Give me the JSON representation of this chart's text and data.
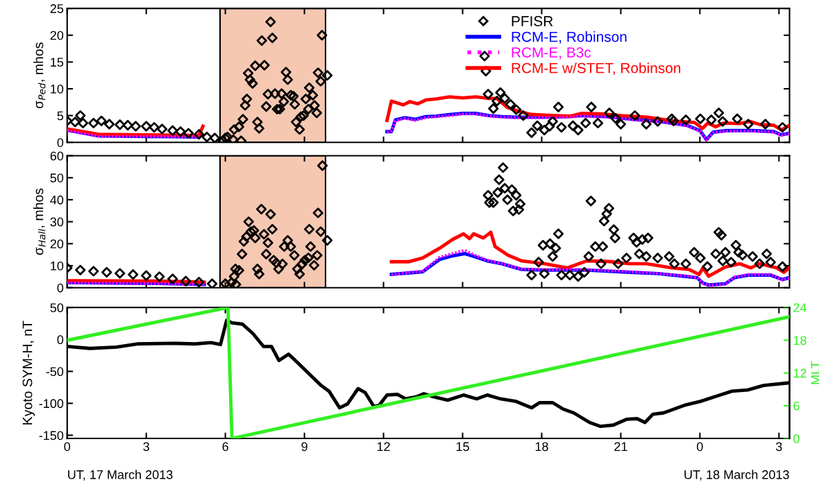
{
  "chart_data": [
    {
      "type": "scatter",
      "ylabel": "σ$_{Ped}$, mhos",
      "xlim": [
        "2013-03-17T00:00",
        "2013-03-18T03:24"
      ],
      "ylim": [
        0,
        25
      ],
      "yticks": [
        0,
        5,
        10,
        15,
        20,
        25
      ],
      "xticks": [
        {
          "value": "2013-03-17T00:00",
          "label": null
        },
        {
          "value": "2013-03-17T03:00",
          "label": null
        },
        {
          "value": "2013-03-17T06:00",
          "label": null
        },
        {
          "value": "2013-03-17T09:00",
          "label": null
        },
        {
          "value": "2013-03-17T12:00",
          "label": null
        },
        {
          "value": "2013-03-17T15:00",
          "label": null
        },
        {
          "value": "2013-03-17T18:00",
          "label": null
        },
        {
          "value": "2013-03-17T21:00",
          "label": null
        },
        {
          "value": "2013-03-18T00:00",
          "label": null
        },
        {
          "value": "2013-03-18T03:00",
          "label": null
        }
      ],
      "tick_labels": "y",
      "legend": "top right",
      "grid": false,
      "bands": [
        {
          "axis": "x",
          "from": "2013-03-17T05:48",
          "to": "2013-03-17T09:48",
          "color": "#f6c8b2"
        }
      ],
      "series": [
        {
          "name": "PFISR",
          "marker": "diamond",
          "color": "#000000",
          "x": [
            "2013-03-17T00:00",
            "2013-03-17T00:18",
            "2013-03-17T00:30",
            "2013-03-17T00:36",
            "2013-03-17T01:00",
            "2013-03-17T01:18",
            "2013-03-17T01:36",
            "2013-03-17T02:00",
            "2013-03-17T02:18",
            "2013-03-17T02:36",
            "2013-03-17T03:00",
            "2013-03-17T03:18",
            "2013-03-17T03:36",
            "2013-03-17T04:00",
            "2013-03-17T04:18",
            "2013-03-17T04:36",
            "2013-03-17T05:00",
            "2013-03-17T05:18",
            "2013-03-17T05:36",
            "2013-03-17T05:54",
            "2013-03-17T06:00",
            "2013-03-17T06:18",
            "2013-03-17T06:36",
            "2013-03-17T06:05",
            "2013-03-17T06:20",
            "2013-03-17T06:31",
            "2013-03-17T06:40",
            "2013-03-17T06:45",
            "2013-03-17T06:49",
            "2013-03-17T06:52",
            "2013-03-17T06:56",
            "2013-03-17T07:02",
            "2013-03-17T07:08",
            "2013-03-17T07:13",
            "2013-03-17T07:17",
            "2013-03-17T07:23",
            "2013-03-17T07:29",
            "2013-03-17T07:33",
            "2013-03-17T07:37",
            "2013-03-17T07:43",
            "2013-03-17T07:47",
            "2013-03-17T07:53",
            "2013-03-17T07:58",
            "2013-03-17T08:04",
            "2013-03-17T08:08",
            "2013-03-17T08:13",
            "2013-03-17T08:18",
            "2013-03-17T08:22",
            "2013-03-17T08:29",
            "2013-03-17T08:35",
            "2013-03-17T08:38",
            "2013-03-17T08:41",
            "2013-03-17T08:49",
            "2013-03-17T08:52",
            "2013-03-17T08:58",
            "2013-03-17T09:03",
            "2013-03-17T09:09",
            "2013-03-17T09:11",
            "2013-03-17T09:19",
            "2013-03-17T09:23",
            "2013-03-17T09:28",
            "2013-03-17T09:31",
            "2013-03-17T09:37",
            "2013-03-17T09:40",
            "2013-03-17T09:52",
            "2013-03-17T15:50",
            "2013-03-17T15:53",
            "2013-03-17T15:58",
            "2013-03-17T16:10",
            "2013-03-17T16:18",
            "2013-03-17T16:26",
            "2013-03-17T16:36",
            "2013-03-17T16:49",
            "2013-03-17T17:02",
            "2013-03-17T17:18",
            "2013-03-17T17:37",
            "2013-03-17T17:50",
            "2013-03-17T18:06",
            "2013-03-17T18:18",
            "2013-03-17T18:25",
            "2013-03-17T18:38",
            "2013-03-17T18:45",
            "2013-03-17T19:11",
            "2013-03-17T19:23",
            "2013-03-17T19:40",
            "2013-03-17T19:53",
            "2013-03-17T20:08",
            "2013-03-17T20:34",
            "2013-03-17T20:48",
            "2013-03-17T21:00",
            "2013-03-17T21:32",
            "2013-03-17T21:58",
            "2013-03-17T22:24",
            "2013-03-17T22:56",
            "2013-03-17T23:00",
            "2013-03-17T23:28",
            "2013-03-18T00:01",
            "2013-03-18T00:26",
            "2013-03-18T00:43",
            "2013-03-18T00:52",
            "2013-03-18T01:25",
            "2013-03-18T01:50",
            "2013-03-18T02:29",
            "2013-03-18T03:08"
          ],
          "values": [
            4,
            3.8,
            5,
            3.6,
            3.6,
            4,
            3.4,
            3.3,
            3.2,
            3,
            3,
            2.8,
            2.5,
            2.2,
            2,
            1.7,
            1.5,
            1,
            0.8,
            0.3,
            0.8,
            0.5,
            0.3,
            1.0,
            2.4,
            2.9,
            4.3,
            6.9,
            8.1,
            12.9,
            11.7,
            11.0,
            14.3,
            3.8,
            2.6,
            19.0,
            14.4,
            6.7,
            9.0,
            22.5,
            19.5,
            9.1,
            6.2,
            6.2,
            9.1,
            7.6,
            13.1,
            11.7,
            8.8,
            8.6,
            7.1,
            3.8,
            2.4,
            4.8,
            5.0,
            8.1,
            6.2,
            10.2,
            8.8,
            6.9,
            5.5,
            13.0,
            11.4,
            20.0,
            12.5,
            16.1,
            13.3,
            9.0,
            6.3,
            7.7,
            9.3,
            8.2,
            7.1,
            6.1,
            5.0,
            1.8,
            3.1,
            2.3,
            3.0,
            3.9,
            6.6,
            2.8,
            3.1,
            2.3,
            3.6,
            6.6,
            3.6,
            5.5,
            4.5,
            3.4,
            5.0,
            3.4,
            3.9,
            4.4,
            4.0,
            4.2,
            4.4,
            4.2,
            5.5,
            3.9,
            4.4,
            3.4,
            3.4,
            2.8
          ]
        },
        {
          "name": "RCM-E, Robinson",
          "type": "line",
          "color": "#0000ff",
          "line_style": "solid",
          "x": [
            "2013-03-17T00:00",
            "2013-03-17T01:12",
            "2013-03-17T03:00",
            "2013-03-17T04:58",
            "2013-03-17T05:07",
            "2013-03-17T08:00",
            "2013-03-17T12:08",
            "2013-03-17T12:18",
            "2013-03-17T12:27",
            "2013-03-17T12:48",
            "2013-03-17T13:12",
            "2013-03-17T13:36",
            "2013-03-17T14:00",
            "2013-03-17T14:30",
            "2013-03-17T15:00",
            "2013-03-17T15:30",
            "2013-03-17T16:00",
            "2013-03-17T16:30",
            "2013-03-17T17:00",
            "2013-03-17T18:00",
            "2013-03-17T19:00",
            "2013-03-17T19:30",
            "2013-03-17T20:30",
            "2013-03-17T21:30",
            "2013-03-17T22:30",
            "2013-03-17T23:30",
            "2013-03-18T00:00",
            "2013-03-18T00:15",
            "2013-03-18T00:30",
            "2013-03-18T01:00",
            "2013-03-18T02:00",
            "2013-03-18T02:48",
            "2013-03-18T03:06",
            "2013-03-18T03:24"
          ],
          "values": [
            2.3,
            1.2,
            1.1,
            1.0,
            1.4,
            null,
            2.0,
            2.0,
            4.2,
            4.6,
            4.3,
            4.8,
            4.9,
            5.2,
            5.4,
            5.4,
            5.0,
            4.8,
            4.7,
            4.7,
            4.8,
            5.0,
            4.8,
            4.3,
            3.9,
            3.2,
            2.2,
            0.5,
            1.9,
            2.2,
            2.2,
            2.0,
            1.4,
            1.7
          ]
        },
        {
          "name": "RCM-E, B3c",
          "type": "line",
          "color": "#ff00ff",
          "line_style": "dotted",
          "x": [
            "2013-03-17T00:00",
            "2013-03-17T01:12",
            "2013-03-17T03:00",
            "2013-03-17T04:58",
            "2013-03-17T05:07",
            "2013-03-17T08:00",
            "2013-03-17T12:08",
            "2013-03-17T12:18",
            "2013-03-17T12:27",
            "2013-03-17T12:48",
            "2013-03-17T13:12",
            "2013-03-17T13:36",
            "2013-03-17T14:00",
            "2013-03-17T14:30",
            "2013-03-17T15:00",
            "2013-03-17T15:30",
            "2013-03-17T16:00",
            "2013-03-17T16:30",
            "2013-03-17T17:00",
            "2013-03-17T18:00",
            "2013-03-17T19:00",
            "2013-03-17T19:30",
            "2013-03-17T20:30",
            "2013-03-17T21:30",
            "2013-03-17T22:30",
            "2013-03-17T23:30",
            "2013-03-18T00:00",
            "2013-03-18T00:15",
            "2013-03-18T00:30",
            "2013-03-18T01:00",
            "2013-03-18T02:00",
            "2013-03-18T02:48",
            "2013-03-18T03:06",
            "2013-03-18T03:24"
          ],
          "values": [
            2.2,
            1.1,
            1.1,
            1.0,
            1.3,
            null,
            1.9,
            2.1,
            4.0,
            4.5,
            4.1,
            4.6,
            4.8,
            5.0,
            5.3,
            5.3,
            4.9,
            4.7,
            4.6,
            4.6,
            4.7,
            4.9,
            4.7,
            4.2,
            3.8,
            3.1,
            2.1,
            0.4,
            1.8,
            2.1,
            2.1,
            1.9,
            1.3,
            1.6
          ]
        },
        {
          "name": "RCM-E w/STET, Robinson",
          "type": "line",
          "color": "#ff0000",
          "line_style": "solid",
          "x": [
            "2013-03-17T00:00",
            "2013-03-17T01:12",
            "2013-03-17T03:00",
            "2013-03-17T05:00",
            "2013-03-17T05:09",
            "2013-03-17T08:00",
            "2013-03-17T12:08",
            "2013-03-17T12:18",
            "2013-03-17T12:45",
            "2013-03-17T13:00",
            "2013-03-17T13:18",
            "2013-03-17T13:36",
            "2013-03-17T14:00",
            "2013-03-17T14:30",
            "2013-03-17T15:00",
            "2013-03-17T15:30",
            "2013-03-17T16:00",
            "2013-03-17T16:18",
            "2013-03-17T16:42",
            "2013-03-17T17:12",
            "2013-03-17T17:36",
            "2013-03-17T18:30",
            "2013-03-17T19:06",
            "2013-03-17T19:30",
            "2013-03-17T20:18",
            "2013-03-17T21:00",
            "2013-03-17T22:00",
            "2013-03-17T23:00",
            "2013-03-17T23:48",
            "2013-03-18T00:06",
            "2013-03-18T00:18",
            "2013-03-18T00:36",
            "2013-03-18T00:54",
            "2013-03-18T01:30",
            "2013-03-18T01:54",
            "2013-03-18T02:18",
            "2013-03-18T02:48",
            "2013-03-18T03:06",
            "2013-03-18T03:24"
          ],
          "values": [
            2.5,
            1.5,
            1.4,
            1.3,
            3.0,
            null,
            4.1,
            7.7,
            7.0,
            7.6,
            7.2,
            7.9,
            8.1,
            8.5,
            8.3,
            8.5,
            8.2,
            8.2,
            6.5,
            5.7,
            5.2,
            5.0,
            4.9,
            5.4,
            5.3,
            5.0,
            4.7,
            4.0,
            3.7,
            2.6,
            3.6,
            2.9,
            3.6,
            3.5,
            3.9,
            3.3,
            3.2,
            2.3,
            3.2
          ]
        }
      ]
    },
    {
      "type": "scatter",
      "ylabel": "σ$_{Hall}$, mhos",
      "xlim": [
        "2013-03-17T00:00",
        "2013-03-18T03:24"
      ],
      "ylim": [
        0,
        60
      ],
      "yticks": [
        0,
        10,
        20,
        30,
        40,
        50,
        60
      ],
      "xticks": [
        {
          "value": "2013-03-17T00:00",
          "label": null
        },
        {
          "value": "2013-03-17T03:00",
          "label": null
        },
        {
          "value": "2013-03-17T06:00",
          "label": null
        },
        {
          "value": "2013-03-17T09:00",
          "label": null
        },
        {
          "value": "2013-03-17T12:00",
          "label": null
        },
        {
          "value": "2013-03-17T15:00",
          "label": null
        },
        {
          "value": "2013-03-17T18:00",
          "label": null
        },
        {
          "value": "2013-03-17T21:00",
          "label": null
        },
        {
          "value": "2013-03-18T00:00",
          "label": null
        },
        {
          "value": "2013-03-18T03:00",
          "label": null
        }
      ],
      "tick_labels": "y",
      "grid": false,
      "bands": [
        {
          "axis": "x",
          "from": "2013-03-17T05:48",
          "to": "2013-03-17T09:48",
          "color": "#f6c8b2"
        }
      ],
      "series": [
        {
          "marker": "diamond",
          "color": "#000000",
          "x": [
            "2013-03-17T00:00",
            "2013-03-17T00:30",
            "2013-03-17T01:00",
            "2013-03-17T01:30",
            "2013-03-17T02:00",
            "2013-03-17T02:30",
            "2013-03-17T03:00",
            "2013-03-17T03:30",
            "2013-03-17T04:00",
            "2013-03-17T04:30",
            "2013-03-17T05:00",
            "2013-03-17T05:30",
            "2013-03-17T06:00",
            "2013-03-17T06:24",
            "2013-03-17T06:14",
            "2013-03-17T06:20",
            "2013-03-17T06:23",
            "2013-03-17T06:31",
            "2013-03-17T06:38",
            "2013-03-17T06:42",
            "2013-03-17T06:48",
            "2013-03-17T06:53",
            "2013-03-17T06:58",
            "2013-03-17T07:05",
            "2013-03-17T07:08",
            "2013-03-17T07:13",
            "2013-03-17T07:17",
            "2013-03-17T07:22",
            "2013-03-17T07:28",
            "2013-03-17T07:33",
            "2013-03-17T07:37",
            "2013-03-17T07:43",
            "2013-03-17T07:47",
            "2013-03-17T07:50",
            "2013-03-17T07:56",
            "2013-03-17T08:01",
            "2013-03-17T08:10",
            "2013-03-17T08:14",
            "2013-03-17T08:22",
            "2013-03-17T08:29",
            "2013-03-17T08:37",
            "2013-03-17T08:44",
            "2013-03-17T08:49",
            "2013-03-17T08:55",
            "2013-03-17T09:01",
            "2013-03-17T09:09",
            "2013-03-17T09:14",
            "2013-03-17T09:11",
            "2013-03-17T09:22",
            "2013-03-17T09:29",
            "2013-03-17T09:31",
            "2013-03-17T09:37",
            "2013-03-17T09:41",
            "2013-03-17T09:52",
            "2013-03-17T16:32",
            "2013-03-17T16:23",
            "2013-03-17T15:58",
            "2013-03-17T16:10",
            "2013-03-17T16:20",
            "2013-03-17T16:36",
            "2013-03-17T16:42",
            "2013-03-17T16:52",
            "2013-03-17T17:02",
            "2013-03-17T16:55",
            "2013-03-17T17:11",
            "2013-03-17T17:08",
            "2013-03-17T16:01",
            "2013-03-17T18:38",
            "2013-03-17T18:03",
            "2013-03-17T18:19",
            "2013-03-17T18:32",
            "2013-03-17T18:25",
            "2013-03-17T17:37",
            "2013-03-17T17:53",
            "2013-03-17T18:06",
            "2013-03-17T18:45",
            "2013-03-17T19:04",
            "2013-03-17T19:23",
            "2013-03-17T19:37",
            "2013-03-17T19:47",
            "2013-03-17T19:52",
            "2013-03-17T20:02",
            "2013-03-17T20:19",
            "2013-03-17T20:22",
            "2013-03-17T20:28",
            "2013-03-17T20:33",
            "2013-03-17T20:44",
            "2013-03-17T20:47",
            "2013-03-17T20:15",
            "2013-03-17T20:54",
            "2013-03-17T21:13",
            "2013-03-17T21:29",
            "2013-03-17T21:36",
            "2013-03-17T21:49",
            "2013-03-17T22:02",
            "2013-03-17T21:42",
            "2013-03-17T21:58",
            "2013-03-17T22:24",
            "2013-03-17T22:50",
            "2013-03-17T23:02",
            "2013-03-17T23:28",
            "2013-03-17T23:47",
            "2013-03-18T00:01",
            "2013-03-18T00:17",
            "2013-03-18T00:36",
            "2013-03-18T00:43",
            "2013-03-18T00:49",
            "2013-03-18T00:58",
            "2013-03-18T00:52",
            "2013-03-18T01:11",
            "2013-03-18T01:22",
            "2013-03-18T01:28",
            "2013-03-18T01:37",
            "2013-03-18T02:00",
            "2013-03-18T02:16",
            "2013-03-18T02:32",
            "2013-03-18T02:41",
            "2013-03-18T03:08"
          ],
          "values": [
            9,
            8,
            7.5,
            7,
            6.5,
            6,
            5.5,
            5,
            4,
            3,
            2.5,
            1.8,
            1.8,
            1.5,
            2.3,
            5.1,
            8.5,
            7.9,
            15.3,
            21.0,
            23.2,
            30.0,
            25.5,
            26.0,
            22.6,
            8.5,
            6.2,
            35.7,
            24.3,
            15.3,
            20.4,
            33.4,
            26.6,
            12.5,
            11.3,
            8.5,
            10.8,
            18.7,
            21.5,
            18.7,
            14.7,
            8.5,
            6.2,
            10.8,
            12.5,
            13.6,
            18.7,
            26.6,
            10.2,
            14.7,
            34.0,
            25.5,
            55.5,
            21.5,
            54.6,
            49.1,
            42.0,
            38.7,
            43.3,
            45.2,
            40.0,
            44.6,
            42.0,
            34.9,
            38.1,
            35.5,
            38.7,
            24.5,
            19.3,
            20.0,
            18.0,
            14.2,
            5.7,
            11.6,
            6.4,
            5.7,
            5.7,
            5.1,
            7.0,
            14.2,
            39.4,
            18.7,
            18.7,
            30.3,
            33.6,
            36.1,
            26.4,
            22.6,
            10.9,
            10.9,
            13.5,
            22.6,
            20.6,
            21.9,
            22.6,
            15.4,
            14.2,
            13.5,
            14.2,
            10.9,
            10.9,
            16.1,
            13.5,
            9.6,
            15.4,
            25.2,
            23.9,
            16.1,
            12.2,
            11.6,
            19.3,
            16.1,
            14.8,
            14.2,
            10.9,
            15.4,
            11.6,
            9.6
          ]
        },
        {
          "type": "line",
          "color": "#0000ff",
          "line_style": "solid",
          "x": [
            "2013-03-17T00:00",
            "2013-03-17T03:30",
            "2013-03-17T05:12",
            "2013-03-17T08:00",
            "2013-03-17T12:18",
            "2013-03-17T12:57",
            "2013-03-17T13:29",
            "2013-03-17T14:08",
            "2013-03-17T14:37",
            "2013-03-17T15:05",
            "2013-03-17T15:25",
            "2013-03-17T15:56",
            "2013-03-17T16:29",
            "2013-03-17T17:14",
            "2013-03-17T18:06",
            "2013-03-17T19:43",
            "2013-03-17T21:19",
            "2013-03-17T22:24",
            "2013-03-17T23:28",
            "2013-03-17T23:54",
            "2013-03-18T00:07",
            "2013-03-18T00:20",
            "2013-03-18T00:58",
            "2013-03-18T01:18",
            "2013-03-18T01:50",
            "2013-03-18T02:41",
            "2013-03-18T03:08",
            "2013-03-18T03:23"
          ],
          "values": [
            2.3,
            1.9,
            1.5,
            null,
            6.1,
            6.7,
            7.2,
            12.9,
            14.5,
            15.5,
            14.3,
            12.2,
            10.9,
            8.3,
            8.0,
            8.0,
            7.0,
            6.4,
            5.1,
            4.5,
            2.1,
            1.2,
            1.8,
            4.5,
            5.7,
            5.7,
            3.7,
            4.5
          ]
        },
        {
          "type": "line",
          "color": "#ff00ff",
          "line_style": "dotted",
          "x": [
            "2013-03-17T00:00",
            "2013-03-17T03:30",
            "2013-03-17T05:12",
            "2013-03-17T08:00",
            "2013-03-17T12:18",
            "2013-03-17T12:57",
            "2013-03-17T13:29",
            "2013-03-17T14:08",
            "2013-03-17T14:37",
            "2013-03-17T15:05",
            "2013-03-17T15:25",
            "2013-03-17T15:56",
            "2013-03-17T16:29",
            "2013-03-17T17:14",
            "2013-03-17T18:06",
            "2013-03-17T19:43",
            "2013-03-17T21:19",
            "2013-03-17T22:24",
            "2013-03-17T23:28",
            "2013-03-17T23:54",
            "2013-03-18T00:07",
            "2013-03-18T00:20",
            "2013-03-18T00:58",
            "2013-03-18T01:18",
            "2013-03-18T01:50",
            "2013-03-18T02:41",
            "2013-03-18T03:08",
            "2013-03-18T03:23"
          ],
          "values": [
            2.2,
            1.8,
            1.4,
            null,
            5.8,
            6.9,
            7.5,
            13.8,
            15.5,
            17.0,
            15.0,
            12.5,
            11.0,
            8.5,
            8.2,
            8.2,
            7.3,
            6.5,
            5.3,
            4.6,
            2.0,
            1.0,
            1.6,
            4.8,
            6.0,
            6.0,
            3.5,
            4.3
          ]
        },
        {
          "type": "line",
          "color": "#ff0000",
          "line_style": "solid",
          "x": [
            "2013-03-17T00:00",
            "2013-03-17T03:30",
            "2013-03-17T05:12",
            "2013-03-17T08:00",
            "2013-03-17T12:18",
            "2013-03-17T12:57",
            "2013-03-17T13:29",
            "2013-03-17T14:08",
            "2013-03-17T14:37",
            "2013-03-17T15:02",
            "2013-03-17T15:16",
            "2013-03-17T15:25",
            "2013-03-17T15:47",
            "2013-03-17T16:04",
            "2013-03-17T16:14",
            "2013-03-17T16:43",
            "2013-03-17T17:14",
            "2013-03-17T18:06",
            "2013-03-17T18:58",
            "2013-03-17T19:43",
            "2013-03-17T20:34",
            "2013-03-17T21:19",
            "2013-03-17T21:58",
            "2013-03-17T22:56",
            "2013-03-17T23:35",
            "2013-03-17T23:58",
            "2013-03-18T00:07",
            "2013-03-18T00:20",
            "2013-03-18T00:58",
            "2013-03-18T01:31",
            "2013-03-18T01:56",
            "2013-03-18T02:16",
            "2013-03-18T02:55",
            "2013-03-18T03:11",
            "2013-03-18T03:23"
          ],
          "values": [
            3.2,
            3.0,
            2.5,
            null,
            11.8,
            11.8,
            13.5,
            18.0,
            21.9,
            24.5,
            22.3,
            24.5,
            22.6,
            25.2,
            18.7,
            14.8,
            12.2,
            10.9,
            9.0,
            12.2,
            11.9,
            10.9,
            10.9,
            9.0,
            8.3,
            6.0,
            9.0,
            5.2,
            9.4,
            10.9,
            9.0,
            10.9,
            9.0,
            7.0,
            9.0
          ]
        }
      ]
    },
    {
      "type": "line",
      "ylabel": "Kyoto SYM-H, nT",
      "y2label": "MLT",
      "xlim": [
        "2013-03-17T00:00",
        "2013-03-18T03:24"
      ],
      "ylim": [
        -155,
        50
      ],
      "yticks": [
        -150,
        -100,
        -50,
        0,
        50
      ],
      "y2lim": [
        0,
        24
      ],
      "y2ticks": [
        0,
        6,
        12,
        18,
        24
      ],
      "grid": false,
      "xticks": [
        {
          "value": "2013-03-17T00:00",
          "label": "0"
        },
        {
          "value": "2013-03-17T03:00",
          "label": "3"
        },
        {
          "value": "2013-03-17T06:00",
          "label": "6"
        },
        {
          "value": "2013-03-17T09:00",
          "label": "9"
        },
        {
          "value": "2013-03-17T12:00",
          "label": "12"
        },
        {
          "value": "2013-03-17T15:00",
          "label": "15"
        },
        {
          "value": "2013-03-17T18:00",
          "label": "18"
        },
        {
          "value": "2013-03-17T21:00",
          "label": "21"
        },
        {
          "value": "2013-03-18T00:00",
          "label": "0"
        },
        {
          "value": "2013-03-18T03:00",
          "label": "3"
        }
      ],
      "annotations": [
        "UT, 17 March 2013",
        "UT, 18 March 2013"
      ],
      "series": [
        {
          "color": "#000000",
          "line_style": "solid",
          "x": [
            "2013-03-17T00:00",
            "2013-03-17T00:52",
            "2013-03-17T01:52",
            "2013-03-17T02:39",
            "2013-03-17T04:03",
            "2013-03-17T04:51",
            "2013-03-17T05:27",
            "2013-03-17T05:49",
            "2013-03-17T06:03",
            "2013-03-17T06:15",
            "2013-03-17T06:39",
            "2013-03-17T07:03",
            "2013-03-17T07:27",
            "2013-03-17T07:45",
            "2013-03-17T08:02",
            "2013-03-17T08:24",
            "2013-03-17T08:44",
            "2013-03-17T09:14",
            "2013-03-17T09:38",
            "2013-03-17T09:56",
            "2013-03-17T10:20",
            "2013-03-17T10:38",
            "2013-03-17T11:02",
            "2013-03-17T11:18",
            "2013-03-17T11:38",
            "2013-03-17T11:50",
            "2013-03-17T12:08",
            "2013-03-17T12:32",
            "2013-03-17T12:50",
            "2013-03-17T13:14",
            "2013-03-17T13:32",
            "2013-03-17T13:50",
            "2013-03-17T14:26",
            "2013-03-17T15:02",
            "2013-03-17T15:32",
            "2013-03-17T15:56",
            "2013-03-17T16:26",
            "2013-03-17T17:02",
            "2013-03-17T17:37",
            "2013-03-17T17:55",
            "2013-03-17T18:25",
            "2013-03-17T18:49",
            "2013-03-17T19:13",
            "2013-03-17T19:49",
            "2013-03-17T20:13",
            "2013-03-17T20:43",
            "2013-03-17T21:13",
            "2013-03-17T21:37",
            "2013-03-17T21:55",
            "2013-03-17T22:13",
            "2013-03-17T22:37",
            "2013-03-17T23:01",
            "2013-03-17T23:25",
            "2013-03-18T00:01",
            "2013-03-18T00:37",
            "2013-03-18T01:13",
            "2013-03-18T01:49",
            "2013-03-18T02:25",
            "2013-03-18T03:21"
          ],
          "values": [
            -11,
            -14,
            -12,
            -7,
            -6,
            -7,
            -5,
            -8,
            30,
            26,
            24,
            9,
            -11,
            -11,
            -33,
            -23,
            -36,
            -56,
            -72,
            -81,
            -107,
            -101,
            -77,
            -83,
            -105,
            -103,
            -87,
            -86,
            -93,
            -90,
            -85,
            -89,
            -95,
            -87,
            -93,
            -87,
            -93,
            -97,
            -107,
            -99,
            -99,
            -109,
            -115,
            -130,
            -136,
            -134,
            -125,
            -124,
            -130,
            -117,
            -115,
            -109,
            -103,
            -97,
            -89,
            -81,
            -79,
            -72,
            -68
          ]
        },
        {
          "axis": "y2",
          "color": "#33ee22",
          "line_style": "solid",
          "x": [
            "2013-03-17T00:00",
            "2013-03-17T06:06",
            "2013-03-17T06:15",
            "2013-03-18T03:24"
          ],
          "values": [
            18.0,
            24,
            0,
            22.3
          ]
        }
      ]
    }
  ]
}
